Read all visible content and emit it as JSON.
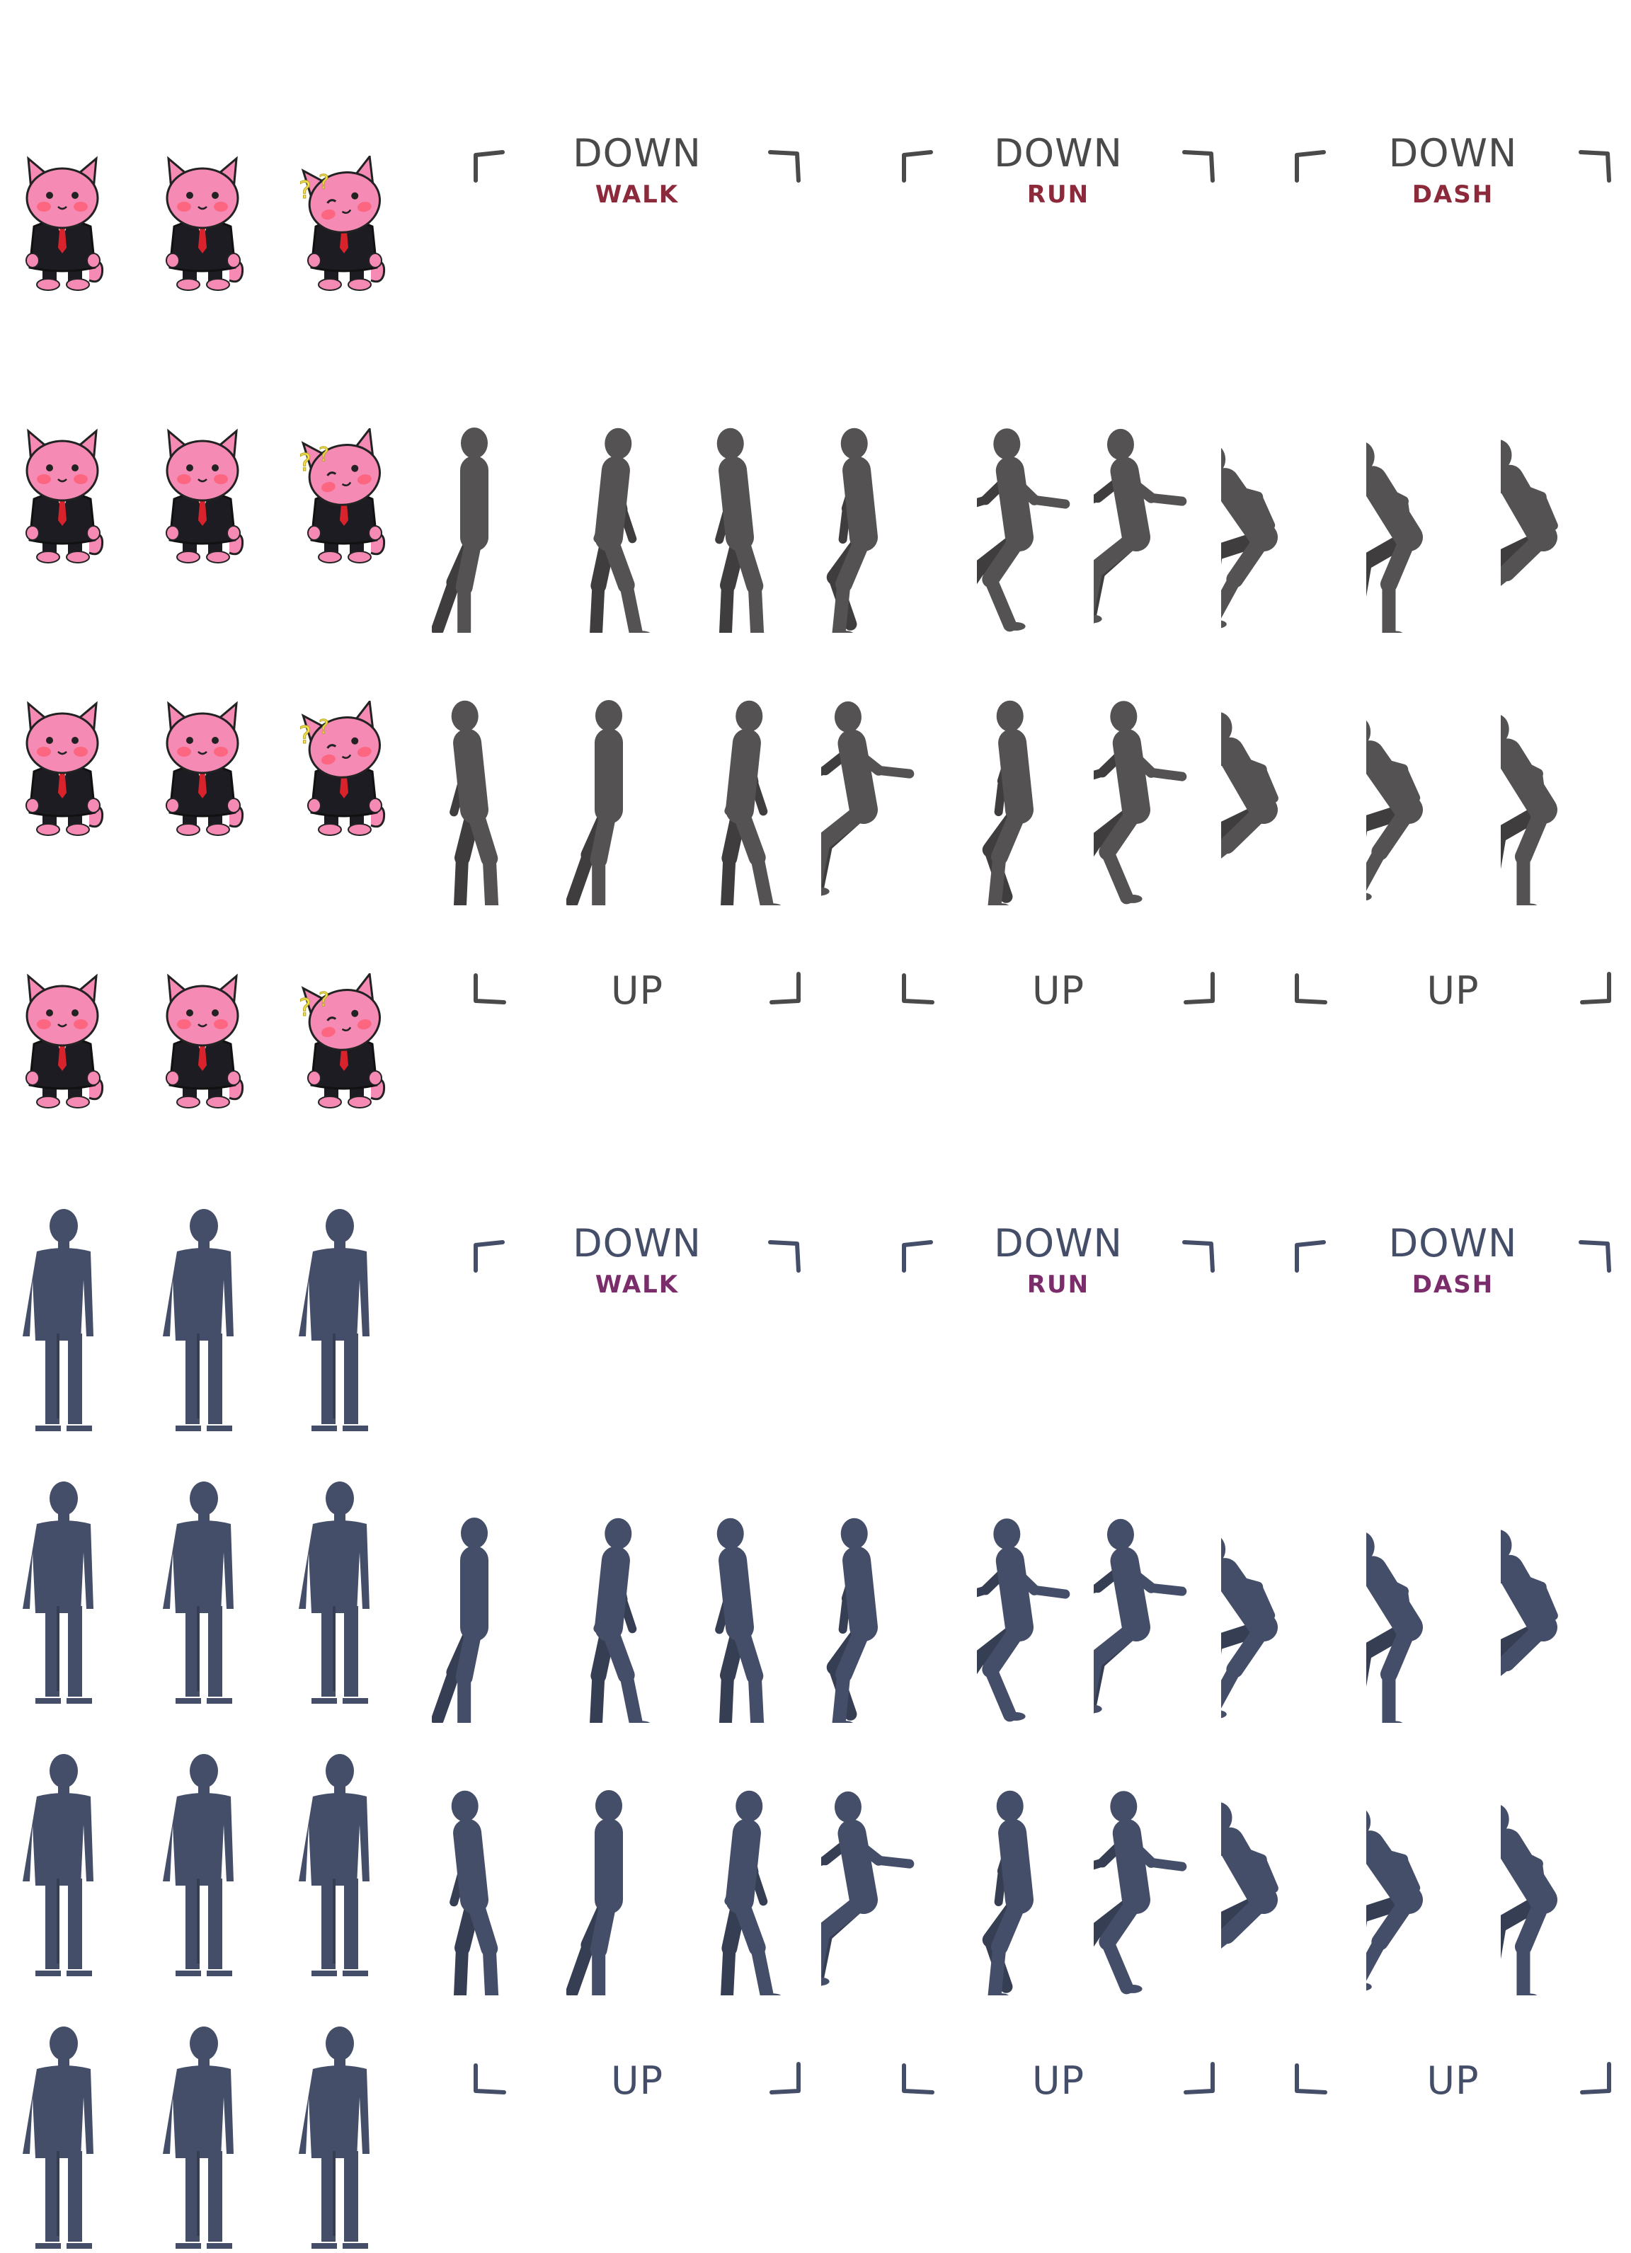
{
  "sheet": {
    "palette": {
      "cat_pink": "#f58ab4",
      "cat_pink_dark": "#e06a9a",
      "suit": "#1c1c22",
      "tie": "#d9232c",
      "blush": "#ff5c74",
      "question_mark": "#f1e24a",
      "gray_silhouette": "#545252",
      "gray_shade": "#3f3d3d",
      "navy_silhouette": "#444e68",
      "navy_shade": "#363e54",
      "label_dark_gray": "#4a4a4a",
      "label_navy": "#444e68",
      "accent_red": "#8c2a3c",
      "accent_purple": "#7a2d6a"
    },
    "headers": [
      {
        "direction": "DOWN",
        "mode": "WALK"
      },
      {
        "direction": "DOWN",
        "mode": "RUN"
      },
      {
        "direction": "DOWN",
        "mode": "DASH"
      },
      {
        "direction": "UP",
        "mode": ""
      },
      {
        "direction": "UP",
        "mode": ""
      },
      {
        "direction": "UP",
        "mode": ""
      },
      {
        "direction": "DOWN",
        "mode": "WALK"
      },
      {
        "direction": "DOWN",
        "mode": "RUN"
      },
      {
        "direction": "DOWN",
        "mode": "DASH"
      },
      {
        "direction": "UP",
        "mode": ""
      },
      {
        "direction": "UP",
        "mode": ""
      },
      {
        "direction": "UP",
        "mode": ""
      }
    ],
    "rows": [
      {
        "idle": [
          "pink-cat-front",
          "pink-cat-front",
          "pink-cat-confused"
        ],
        "header_group": "down"
      },
      {
        "idle": [
          "pink-cat-front",
          "pink-cat-front",
          "pink-cat-confused"
        ],
        "frames": [
          "walk",
          "walk",
          "walk",
          "run",
          "run",
          "run",
          "dash",
          "dash",
          "dash"
        ]
      },
      {
        "idle": [
          "pink-cat-front",
          "pink-cat-front",
          "pink-cat-confused"
        ],
        "frames": [
          "walk",
          "walk",
          "walk",
          "run",
          "run",
          "run",
          "dash",
          "dash",
          "dash"
        ]
      },
      {
        "idle": [
          "pink-cat-front",
          "pink-cat-front",
          "pink-cat-confused"
        ],
        "header_group": "up"
      },
      {
        "idle": [
          "navy-standing",
          "navy-standing",
          "navy-standing"
        ],
        "header_group": "down"
      },
      {
        "idle": [
          "navy-standing",
          "navy-standing",
          "navy-standing"
        ],
        "frames": [
          "walk",
          "walk",
          "walk",
          "run",
          "run",
          "run",
          "dash",
          "dash",
          "dash"
        ]
      },
      {
        "idle": [
          "navy-standing",
          "navy-standing",
          "navy-standing"
        ],
        "frames": [
          "walk",
          "walk",
          "walk",
          "run",
          "run",
          "run",
          "dash",
          "dash",
          "dash"
        ]
      },
      {
        "idle": [
          "navy-standing",
          "navy-standing",
          "navy-standing"
        ],
        "header_group": "up"
      }
    ]
  }
}
